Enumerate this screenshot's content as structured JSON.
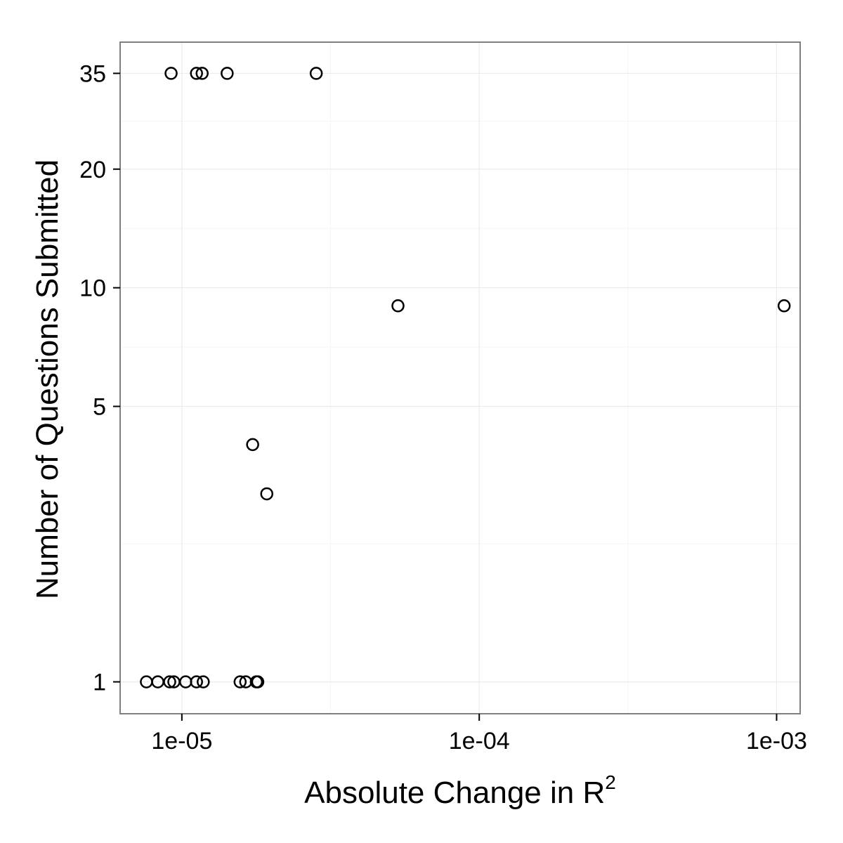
{
  "chart_data": {
    "type": "scatter",
    "title": "",
    "xlabel": "Absolute Change in R",
    "xlabel_superscript": "2",
    "ylabel": "Number of Questions Submitted",
    "x_scale": "log10",
    "y_scale": "log10",
    "xlim": [
      6.2e-06,
      0.0012
    ],
    "ylim": [
      0.83,
      42
    ],
    "x_ticks": [
      {
        "value": 1e-05,
        "label": "1e-05"
      },
      {
        "value": 0.0001,
        "label": "1e-04"
      },
      {
        "value": 0.001,
        "label": "1e-03"
      }
    ],
    "x_minor_ticks": [
      3.16e-05,
      0.000316
    ],
    "y_ticks": [
      {
        "value": 1,
        "label": "1"
      },
      {
        "value": 5,
        "label": "5"
      },
      {
        "value": 10,
        "label": "10"
      },
      {
        "value": 20,
        "label": "20"
      },
      {
        "value": 35,
        "label": "35"
      }
    ],
    "y_minor_ticks": [
      2.24,
      7.07,
      14.14,
      26.46
    ],
    "grid": true,
    "points": [
      {
        "x": 9.2e-06,
        "y": 35
      },
      {
        "x": 1.12e-05,
        "y": 35
      },
      {
        "x": 1.17e-05,
        "y": 35
      },
      {
        "x": 1.42e-05,
        "y": 35
      },
      {
        "x": 2.83e-05,
        "y": 35
      },
      {
        "x": 5.33e-05,
        "y": 9
      },
      {
        "x": 0.00106,
        "y": 9
      },
      {
        "x": 1.73e-05,
        "y": 4
      },
      {
        "x": 1.93e-05,
        "y": 3
      },
      {
        "x": 7.6e-06,
        "y": 1
      },
      {
        "x": 8.3e-06,
        "y": 1
      },
      {
        "x": 9.1e-06,
        "y": 1
      },
      {
        "x": 9.4e-06,
        "y": 1
      },
      {
        "x": 1.03e-05,
        "y": 1
      },
      {
        "x": 1.12e-05,
        "y": 1
      },
      {
        "x": 1.18e-05,
        "y": 1
      },
      {
        "x": 1.57e-05,
        "y": 1
      },
      {
        "x": 1.64e-05,
        "y": 1
      },
      {
        "x": 1.78e-05,
        "y": 1
      },
      {
        "x": 1.8e-05,
        "y": 1
      }
    ]
  }
}
